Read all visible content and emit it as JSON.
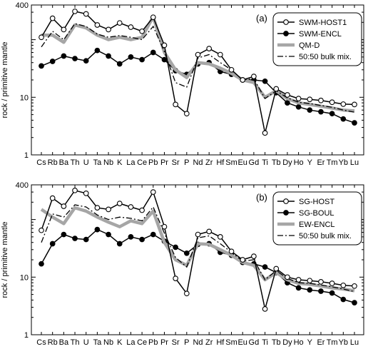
{
  "chart_data": [
    {
      "type": "line",
      "panel_label": "(a)",
      "ylabel": "rock / primitive mantle",
      "yscale": "log",
      "ylim": [
        1,
        400
      ],
      "yticks": [
        "1",
        "10",
        "400"
      ],
      "categories": [
        "Cs",
        "Rb",
        "Ba",
        "Th",
        "U",
        "Ta",
        "Nb",
        "K",
        "La",
        "Ce",
        "Pb",
        "Pr",
        "Sr",
        "P",
        "Nd",
        "Zr",
        "Hf",
        "Sm",
        "Eu",
        "Gd",
        "Ti",
        "Tb",
        "Dy",
        "Ho",
        "Y",
        "Er",
        "Tm",
        "Yb",
        "Lu"
      ],
      "legend_position": "top-right",
      "series": [
        {
          "name": "SWM-HOST1",
          "style": "open-circle",
          "color": "#000000",
          "values": [
            110,
            235,
            150,
            310,
            280,
            180,
            150,
            195,
            165,
            140,
            245,
            80,
            7.5,
            5.2,
            55,
            70,
            55,
            30,
            20,
            23,
            2.4,
            14,
            11,
            9.5,
            9.2,
            8.8,
            8.2,
            7.6,
            7.5
          ]
        },
        {
          "name": "SWM-ENCL",
          "style": "filled-circle",
          "color": "#000000",
          "values": [
            35,
            42,
            52,
            47,
            43,
            65,
            52,
            38,
            50,
            45,
            60,
            45,
            29,
            25,
            38,
            40,
            28,
            25,
            20,
            20,
            19,
            12,
            8,
            6.8,
            6,
            5.6,
            5.2,
            4.2,
            3.6
          ]
        },
        {
          "name": "QM-D",
          "style": "thick-gray",
          "color": "#a6a6a6",
          "values": [
            120,
            120,
            90,
            180,
            160,
            120,
            100,
            110,
            100,
            110,
            250,
            60,
            30,
            22,
            40,
            38,
            32,
            26,
            20,
            18,
            10,
            13,
            9.5,
            8,
            7.5,
            7,
            6.5,
            6,
            5.8
          ]
        },
        {
          "name": "50:50 bulk mix.",
          "style": "dash-dot",
          "color": "#000000",
          "values": [
            75,
            140,
            100,
            190,
            170,
            125,
            110,
            118,
            110,
            100,
            170,
            62,
            18,
            15,
            48,
            55,
            40,
            30,
            20,
            21,
            9.5,
            13,
            9.8,
            8.2,
            7.8,
            7.2,
            6.7,
            6,
            5.5
          ]
        }
      ]
    },
    {
      "type": "line",
      "panel_label": "(b)",
      "ylabel": "rock / primitive mantle",
      "yscale": "log",
      "ylim": [
        1,
        400
      ],
      "yticks": [
        "1",
        "10",
        "400"
      ],
      "categories": [
        "Cs",
        "Rb",
        "Ba",
        "Th",
        "U",
        "Ta",
        "Nb",
        "K",
        "La",
        "Ce",
        "Pb",
        "Pr",
        "Sr",
        "P",
        "Nd",
        "Zr",
        "Hf",
        "Sm",
        "Eu",
        "Gd",
        "Ti",
        "Tb",
        "Dy",
        "Ho",
        "Y",
        "Er",
        "Tm",
        "Yb",
        "Lu"
      ],
      "legend_position": "top-right",
      "series": [
        {
          "name": "SG-HOST",
          "style": "open-circle",
          "color": "#000000",
          "values": [
            65,
            235,
            170,
            320,
            285,
            160,
            150,
            190,
            165,
            145,
            300,
            75,
            9.5,
            5.2,
            55,
            62,
            50,
            28,
            20,
            23,
            2.8,
            14,
            10,
            9,
            8.7,
            8.3,
            7.8,
            7.2,
            7
          ]
        },
        {
          "name": "SG-BOUL",
          "style": "filled-circle",
          "color": "#000000",
          "values": [
            17,
            38,
            55,
            47,
            45,
            67,
            55,
            38,
            50,
            45,
            55,
            42,
            33,
            26,
            37,
            38,
            27,
            24,
            18,
            17,
            15,
            12,
            8,
            6.5,
            6,
            5.7,
            5.3,
            4.1,
            3.6
          ]
        },
        {
          "name": "EW-ENCL",
          "style": "thick-gray",
          "color": "#a6a6a6",
          "values": [
            150,
            110,
            85,
            160,
            140,
            110,
            90,
            75,
            95,
            85,
            140,
            40,
            20,
            16,
            38,
            37,
            30,
            24,
            18,
            16,
            9,
            12,
            9,
            7.8,
            7.5,
            7,
            6.5,
            6.2,
            5.8
          ]
        },
        {
          "name": "50:50 bulk mix.",
          "style": "dash-dot",
          "color": "#000000",
          "values": [
            40,
            125,
            110,
            180,
            165,
            120,
            100,
            110,
            105,
            95,
            165,
            58,
            22,
            15,
            48,
            52,
            38,
            27,
            19,
            20,
            9,
            13,
            9.5,
            8,
            7.8,
            7.3,
            6.8,
            6.2,
            5.6
          ]
        }
      ]
    }
  ]
}
